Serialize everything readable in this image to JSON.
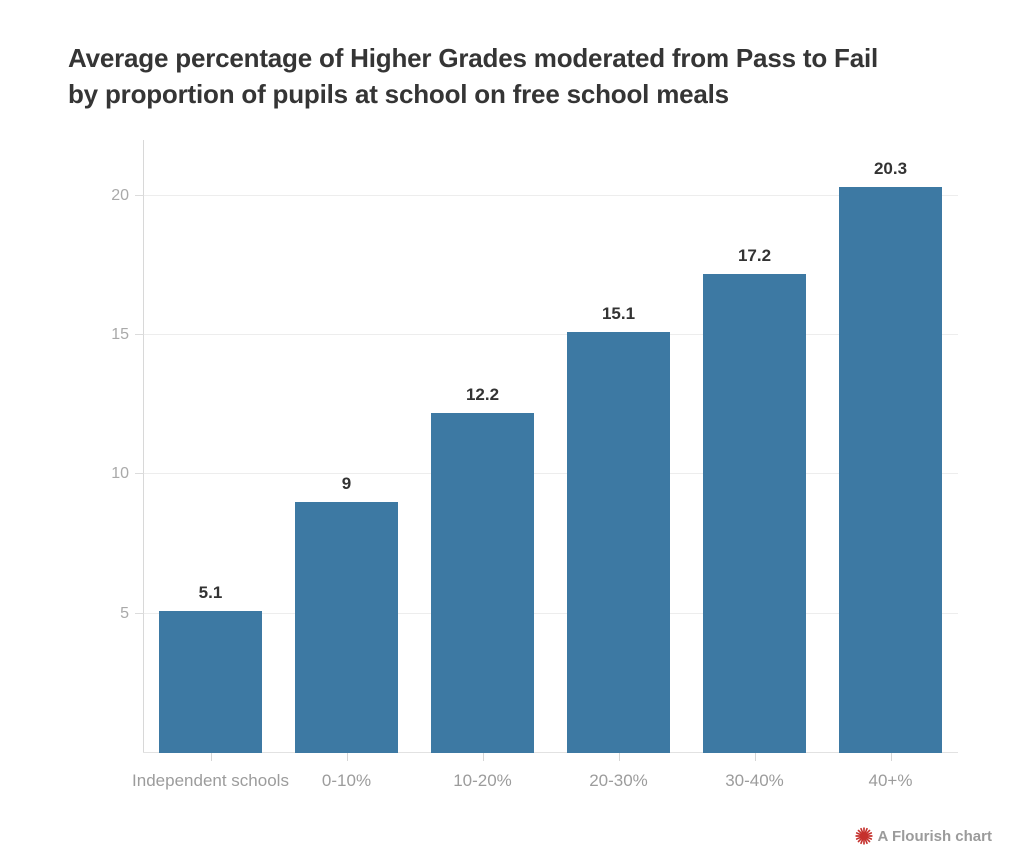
{
  "title": {
    "line1": "Average percentage of Higher Grades moderated from Pass to Fail",
    "line2": "by proportion of pupils at school on free school meals"
  },
  "chart_data": {
    "type": "bar",
    "title": "Average percentage of Higher Grades moderated from Pass to Fail by proportion of pupils at school on free school meals",
    "categories": [
      "Independent schools",
      "0-10%",
      "10-20%",
      "20-30%",
      "30-40%",
      "40+%"
    ],
    "values": [
      5.1,
      9,
      12.2,
      15.1,
      17.2,
      20.3
    ],
    "value_labels": [
      "5.1",
      "9",
      "12.2",
      "15.1",
      "17.2",
      "20.3"
    ],
    "xlabel": "",
    "ylabel": "",
    "y_ticks": [
      5,
      10,
      15,
      20
    ],
    "ylim": [
      0,
      22
    ],
    "grid": true,
    "legend_position": "none",
    "bar_color": "#3d79a3",
    "value_label_color": "#333333",
    "axis_label_color": "#9c9c9c"
  },
  "footer": {
    "attribution": "A Flourish chart",
    "logo_icon": "flourish-starburst-icon",
    "logo_color": "#c5312d"
  },
  "colors": {
    "title": "#353535",
    "gridline": "#ededed",
    "axis_line": "#d8d8d8",
    "background": "#ffffff"
  }
}
